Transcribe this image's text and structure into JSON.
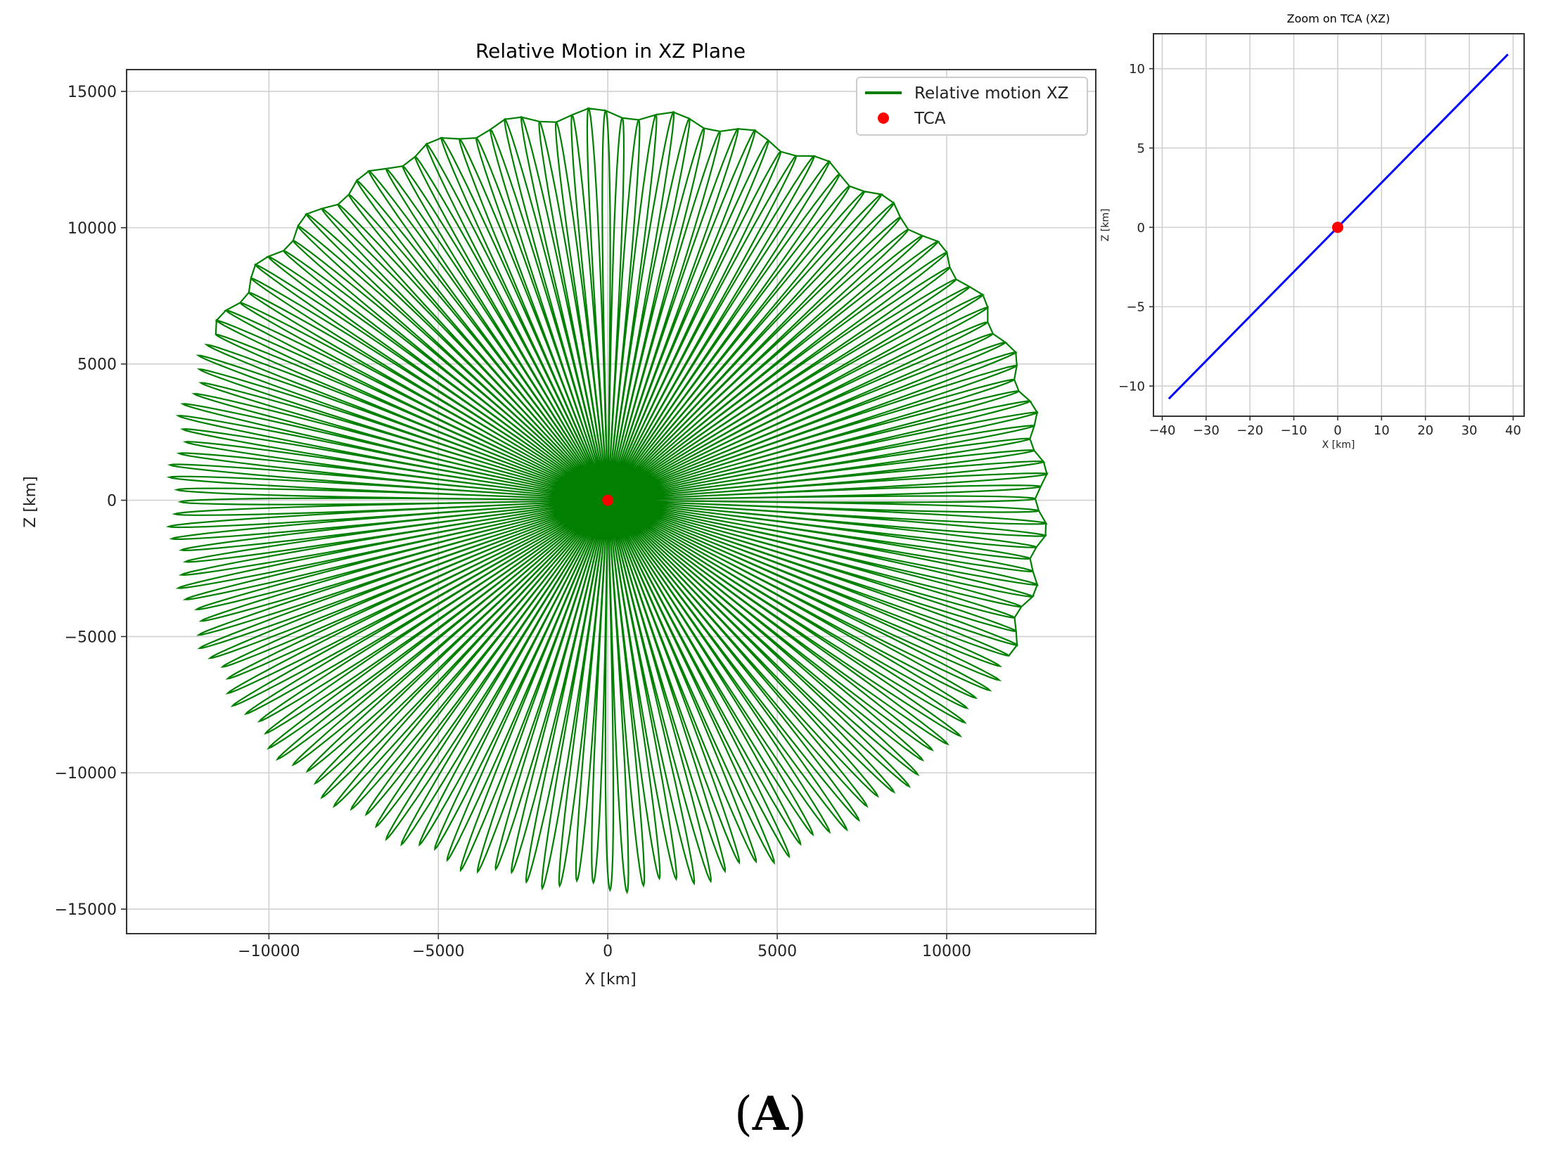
{
  "chart_data": [
    {
      "type": "line",
      "title": "Relative Motion in XZ Plane",
      "xlabel": "X [km]",
      "ylabel": "Z [km]",
      "xlim": [
        -14200,
        14400
      ],
      "ylim": [
        -15900,
        15800
      ],
      "xticks": [
        -10000,
        -5000,
        0,
        5000,
        10000
      ],
      "xtick_labels": [
        "−10000",
        "−5000",
        "0",
        "5000",
        "10000"
      ],
      "yticks": [
        -15000,
        -10000,
        -5000,
        0,
        5000,
        10000,
        15000
      ],
      "ytick_labels": [
        "−15000",
        "−10000",
        "−5000",
        "0",
        "5000",
        "10000",
        "15000"
      ],
      "grid": true,
      "legend": "top-right",
      "series": [
        {
          "name": "Relative motion XZ",
          "color": "#007f00",
          "description_values": {
            "max_abs_x": 13000,
            "max_abs_z": 14400,
            "start_point": [
              -11600,
              6100
            ],
            "end_point": [
              11600,
              -6100
            ],
            "loop_count": 90
          }
        },
        {
          "name": "TCA",
          "color": "#ff0000",
          "marker": "point",
          "points": [
            [
              0,
              0
            ]
          ]
        }
      ]
    },
    {
      "type": "line",
      "title": "Zoom on TCA (XZ)",
      "xlabel": "X [km]",
      "ylabel": "Z [km]",
      "xlim": [
        -42,
        42.5
      ],
      "ylim": [
        -11.9,
        12.2
      ],
      "xticks": [
        -40,
        -30,
        -20,
        -10,
        0,
        10,
        20,
        30,
        40
      ],
      "xtick_labels": [
        "−40",
        "−30",
        "−20",
        "−10",
        "0",
        "10",
        "20",
        "30",
        "40"
      ],
      "yticks": [
        -10,
        -5,
        0,
        5,
        10
      ],
      "ytick_labels": [
        "−10",
        "−5",
        "0",
        "5",
        "10"
      ],
      "grid": true,
      "series": [
        {
          "color": "#0000ff",
          "points": [
            [
              -38.5,
              -10.8
            ],
            [
              38.8,
              10.9
            ]
          ]
        },
        {
          "color": "#ff0000",
          "marker": "point",
          "points": [
            [
              0,
              0
            ]
          ]
        }
      ]
    }
  ],
  "caption": {
    "open": "(",
    "label": "A",
    "close": ")"
  }
}
